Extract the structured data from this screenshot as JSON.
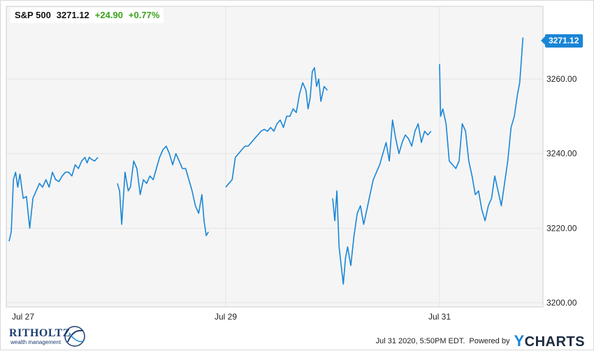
{
  "header": {
    "ticker": "S&P 500",
    "price": "3271.12",
    "change": "+24.90",
    "change_pct": "+0.77%"
  },
  "last_price_tag": "3271.12",
  "footer": {
    "logo_text": "RITHOLTZ",
    "logo_sub": "wealth management",
    "timestamp": "Jul 31 2020, 5:50PM EDT.",
    "powered_by": "Powered by",
    "brand": "CHARTS",
    "brand_y": "Y"
  },
  "colors": {
    "line": "#1a86d6",
    "positive": "#3aa11a",
    "plot_background": "#f5f5f5"
  },
  "chart_data": {
    "type": "line",
    "title": "S&P 500",
    "xlabel": "",
    "ylabel": "",
    "x_ticks": [
      "Jul 27",
      "Jul 29",
      "Jul 31"
    ],
    "y_ticks": [
      "3200.00",
      "3220.00",
      "3240.00",
      "3260.00"
    ],
    "ylim": [
      3200,
      3275
    ],
    "grid": true,
    "y_axis_side": "right",
    "x_range_days": [
      0,
      4.77
    ],
    "series": [
      {
        "segments": [
          {
            "x": [
              0.0,
              0.02,
              0.04,
              0.06,
              0.08,
              0.1,
              0.13,
              0.16,
              0.19,
              0.22,
              0.25,
              0.28,
              0.31,
              0.34,
              0.37,
              0.4,
              0.43,
              0.46,
              0.49,
              0.52,
              0.55,
              0.58,
              0.61,
              0.64,
              0.67,
              0.7,
              0.72,
              0.74,
              0.76,
              0.79,
              0.82
            ],
            "y": [
              3216.5,
              3219,
              3233,
              3235,
              3231,
              3234.5,
              3228,
              3228.5,
              3220,
              3228,
              3230,
              3232,
              3231,
              3233,
              3231,
              3235,
              3233,
              3232.5,
              3234,
              3235,
              3235,
              3234,
              3237,
              3236,
              3238,
              3239,
              3237.5,
              3239,
              3238.5,
              3238,
              3239
            ]
          },
          {
            "x": [
              1.0,
              1.02,
              1.04,
              1.07,
              1.1,
              1.12,
              1.15,
              1.18,
              1.21,
              1.24,
              1.27,
              1.3,
              1.33,
              1.36,
              1.39,
              1.42,
              1.45,
              1.48,
              1.51,
              1.54,
              1.57,
              1.6,
              1.63,
              1.66,
              1.69,
              1.72,
              1.75,
              1.78,
              1.8,
              1.82,
              1.84
            ],
            "y": [
              3232,
              3230,
              3221,
              3235,
              3230,
              3231,
              3238,
              3236,
              3229,
              3233,
              3232,
              3234,
              3233,
              3236,
              3239,
              3241,
              3242,
              3240,
              3237,
              3240,
              3238,
              3236,
              3236,
              3233,
              3230,
              3226,
              3224,
              3229,
              3222,
              3218,
              3219
            ]
          },
          {
            "x": [
              2.0,
              2.03,
              2.06,
              2.09,
              2.12,
              2.15,
              2.18,
              2.21,
              2.24,
              2.27,
              2.3,
              2.33,
              2.36,
              2.39,
              2.42,
              2.45,
              2.48,
              2.51,
              2.54,
              2.57,
              2.6,
              2.63,
              2.66,
              2.69,
              2.72,
              2.75,
              2.77,
              2.79,
              2.81,
              2.83,
              2.85,
              2.87,
              2.89,
              2.92,
              2.95
            ],
            "y": [
              3231,
              3232,
              3233,
              3239,
              3240,
              3241,
              3242,
              3242,
              3243,
              3244,
              3245,
              3246,
              3246.5,
              3246,
              3247,
              3246,
              3248,
              3249,
              3247,
              3250,
              3250,
              3252,
              3251,
              3256,
              3259,
              3257,
              3252,
              3255,
              3262,
              3263,
              3258,
              3260,
              3254,
              3258,
              3257
            ]
          },
          {
            "x": [
              3.0,
              3.02,
              3.04,
              3.06,
              3.08,
              3.1,
              3.12,
              3.14,
              3.17,
              3.2,
              3.23,
              3.26,
              3.29,
              3.32,
              3.35,
              3.38,
              3.41,
              3.44,
              3.47,
              3.5,
              3.53,
              3.56,
              3.59,
              3.62,
              3.65,
              3.68,
              3.71,
              3.74,
              3.77,
              3.8,
              3.83,
              3.86,
              3.89,
              3.92
            ],
            "y": [
              3228,
              3222,
              3230,
              3215,
              3210,
              3205,
              3212,
              3215,
              3210,
              3218,
              3224,
              3226,
              3221,
              3225,
              3229,
              3233,
              3235,
              3237,
              3240,
              3243,
              3238,
              3249,
              3244,
              3240,
              3243,
              3245,
              3244,
              3242,
              3246,
              3248,
              3243,
              3246,
              3245,
              3246
            ]
          },
          {
            "x": [
              4.0,
              4.01,
              4.03,
              4.06,
              4.09,
              4.12,
              4.15,
              4.18,
              4.21,
              4.24,
              4.27,
              4.3,
              4.33,
              4.36,
              4.39,
              4.42,
              4.45,
              4.48,
              4.51,
              4.54,
              4.57,
              4.6,
              4.63,
              4.66,
              4.69,
              4.72,
              4.74,
              4.76,
              4.77
            ],
            "y": [
              3264,
              3250,
              3252,
              3248,
              3238,
              3237,
              3236,
              3238,
              3248,
              3246,
              3238,
              3234,
              3229,
              3230,
              3225,
              3222,
              3226,
              3228,
              3234,
              3230,
              3226,
              3232,
              3238,
              3247,
              3250,
              3256,
              3259,
              3267,
              3271.12
            ]
          }
        ]
      }
    ]
  }
}
